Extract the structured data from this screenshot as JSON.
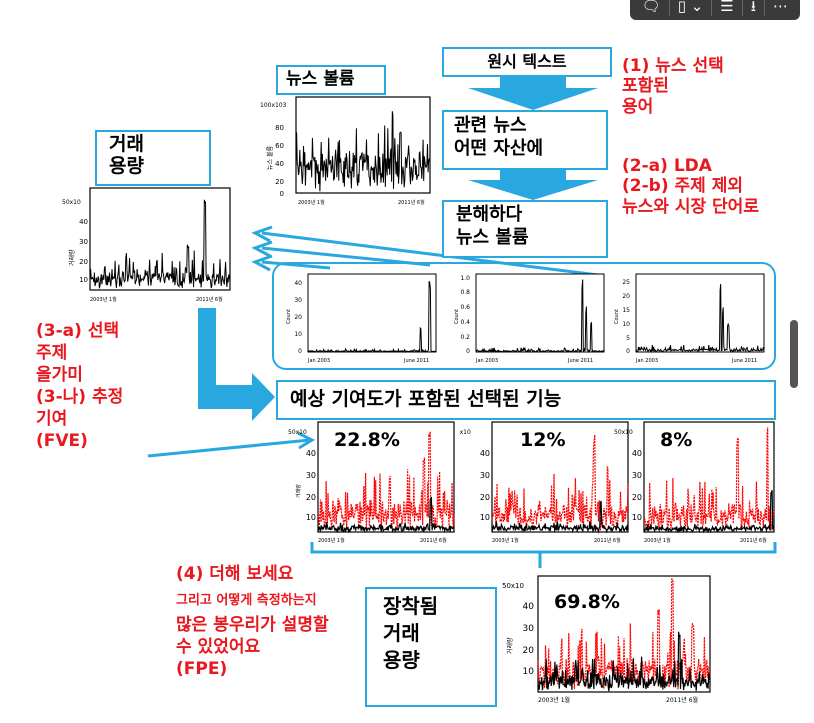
{
  "toolbar": {
    "icons": [
      "comment-icon",
      "bookmark-icon",
      "list-icon",
      "download-icon",
      "more-icon"
    ]
  },
  "boxes": {
    "news_volume": "뉴스 볼륨",
    "raw_text": "원시 텍스트",
    "related_news_l1": "관련 뉴스",
    "related_news_l2": "어떤 자산에",
    "decompose_l1": "분해하다",
    "decompose_l2": "뉴스 볼륨",
    "trade_volume_l1": "거래",
    "trade_volume_l2": "용량",
    "selected_features": "예상 기여도가 포함된 선택된 기능",
    "fitted_l1": "장착됨",
    "fitted_l2": "거래",
    "fitted_l3": "용량"
  },
  "red_notes": {
    "step1": [
      "(1) 뉴스 선택",
      "포함된",
      "용어"
    ],
    "step2": [
      "(2-a) LDA",
      "(2-b) 주제 제외",
      "뉴스와 시장 단어로"
    ],
    "step3": [
      "(3-a) 선택",
      "주제",
      "올가미",
      "(3-나) 추정",
      "기여",
      "(FVE)"
    ],
    "step4_title": "(4) 더해 보세요",
    "step4_sub": "그리고 어떻게 측정하는지",
    "step4_rest": [
      "많은 봉우리가 설명할",
      "수 있었어요",
      "(FPE)"
    ]
  },
  "percentages": {
    "p1": "22.8%",
    "p2": "12%",
    "p3": "8%",
    "fitted": "69.8%"
  },
  "axes": {
    "news_vol_top": "100x103",
    "news_vol_ticks": [
      "80",
      "60",
      "40",
      "20",
      "0"
    ],
    "news_vol_ylabel": "뉴스 볼륨",
    "trade_top": "50x10",
    "trade_ticks": [
      "40",
      "30",
      "20",
      "10"
    ],
    "trade_ylabel": "거래량",
    "x_start_kr": "2003년 1월",
    "x_end_kr": "2011년 6월",
    "x_start_en": "Jan 2003",
    "x_end_en": "June 2011",
    "count_ylabel": "Count",
    "topic1_ticks": [
      "40",
      "30",
      "20",
      "10",
      "0"
    ],
    "topic2_ticks": [
      "1.0",
      "0.8",
      "0.6",
      "0.4",
      "0.2",
      "0"
    ],
    "topic3_ticks": [
      "25",
      "20",
      "15",
      "10",
      "5",
      "0"
    ],
    "feature_ylabel": "거래량"
  },
  "colors": {
    "accent_blue": "#29a8e0",
    "note_red": "#e8181e",
    "series_red": "#ff0000",
    "series_black": "#000000"
  }
}
